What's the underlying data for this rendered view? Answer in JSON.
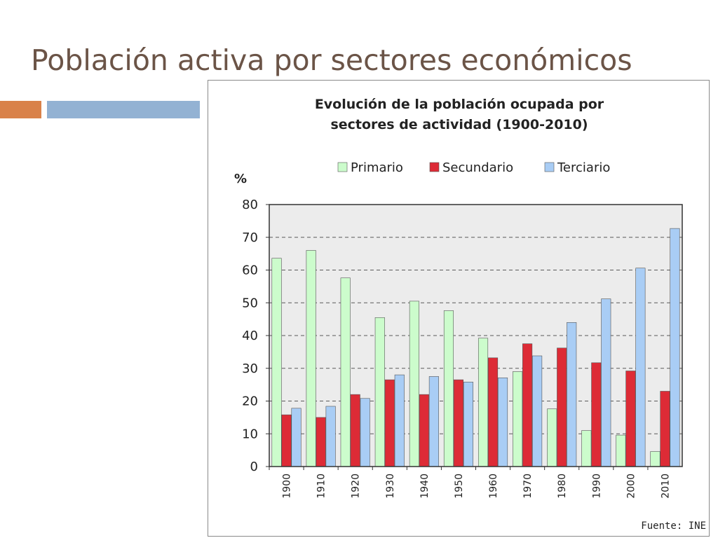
{
  "slide": {
    "title": "Población activa por sectores económicos",
    "accent_colors": [
      "#d9824a",
      "#93b2d3"
    ]
  },
  "chart_data": {
    "type": "bar",
    "title_lines": [
      "Evolución de la población ocupada por",
      "sectores de actividad (1900-2010)"
    ],
    "ylabel": "%",
    "xlabel": "",
    "ylim": [
      0,
      80
    ],
    "yticks": [
      0,
      10,
      20,
      30,
      40,
      50,
      60,
      70,
      80
    ],
    "grid": true,
    "legend_position": "top",
    "source": "Fuente: INE",
    "categories": [
      "1900",
      "1910",
      "1920",
      "1930",
      "1940",
      "1950",
      "1960",
      "1970",
      "1980",
      "1990",
      "2000",
      "2010"
    ],
    "series": [
      {
        "name": "Primario",
        "color": "#ccfccc",
        "values": [
          63.6,
          66.0,
          57.6,
          45.5,
          50.5,
          47.6,
          39.2,
          29.0,
          17.6,
          11.0,
          9.6,
          4.6
        ]
      },
      {
        "name": "Secundario",
        "color": "#dd2b36",
        "values": [
          15.8,
          15.0,
          22.0,
          26.5,
          22.0,
          26.5,
          33.2,
          37.5,
          36.2,
          31.7,
          29.2,
          23.0
        ]
      },
      {
        "name": "Terciario",
        "color": "#a9cdf5",
        "values": [
          17.8,
          18.4,
          20.8,
          28.0,
          27.5,
          25.8,
          27.1,
          33.8,
          44.0,
          51.2,
          60.6,
          72.7
        ]
      }
    ]
  }
}
